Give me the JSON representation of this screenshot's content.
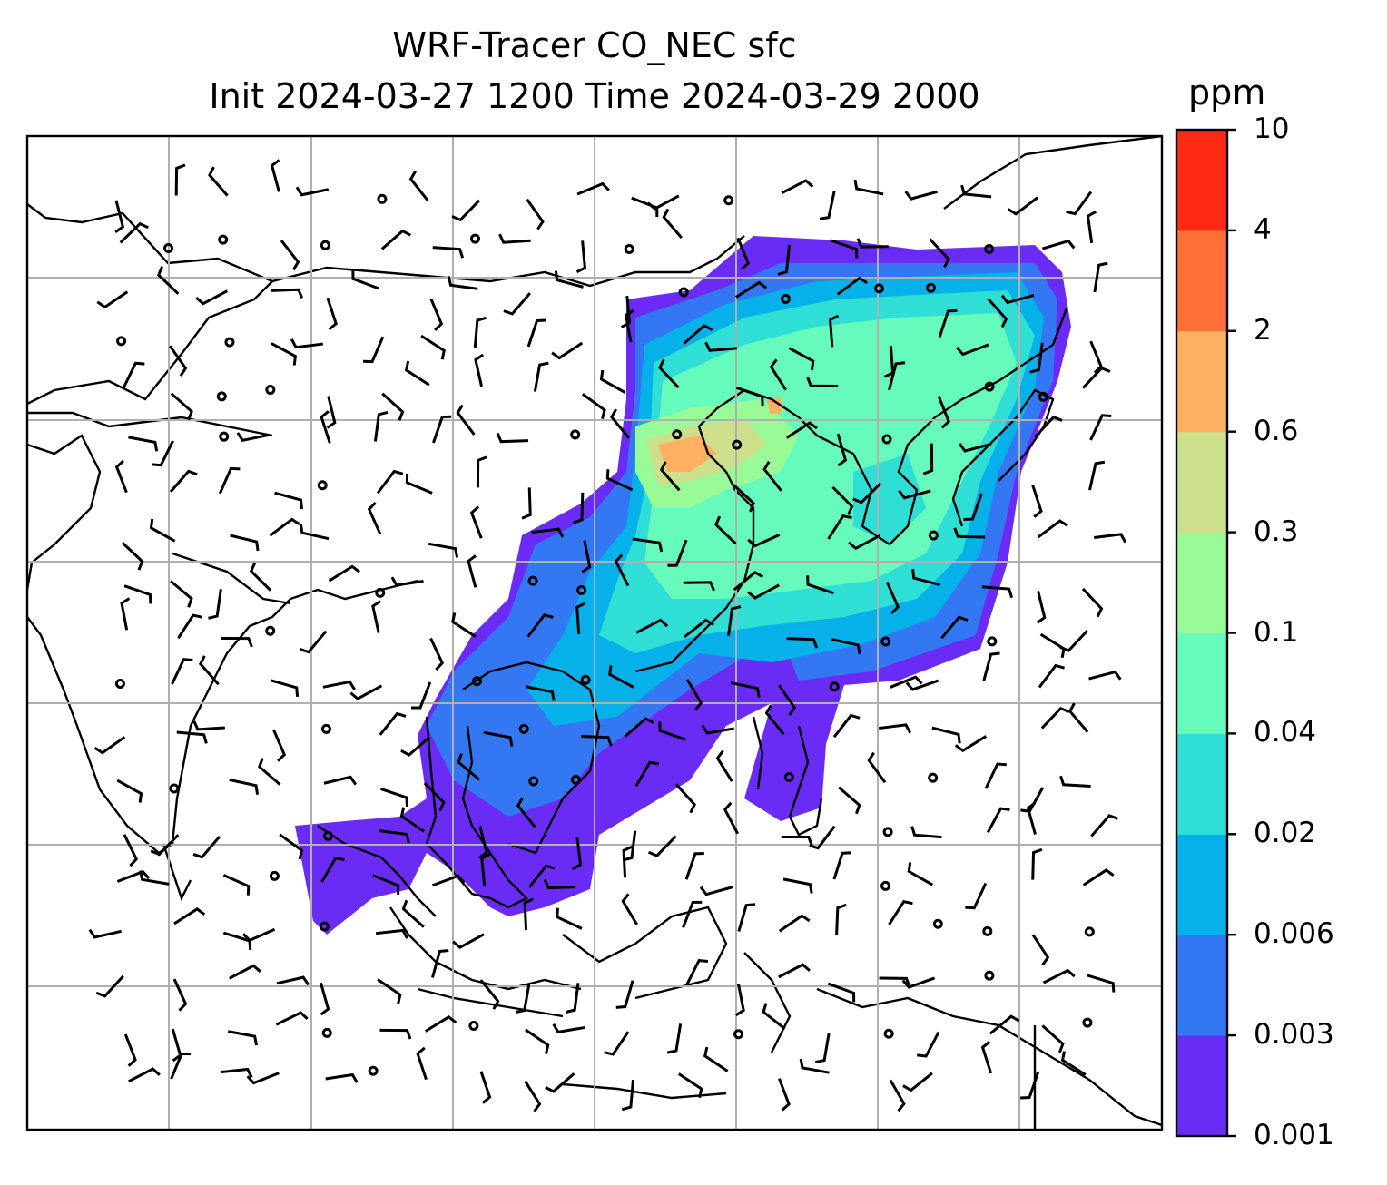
{
  "title_line_1": "WRF-Tracer CO_NEC sfc",
  "title_line_2": "Init 2024-03-27 1200 Time 2024-03-29 2000",
  "colorbar": {
    "unit": "ppm",
    "ticks": [
      "0.001",
      "0.003",
      "0.006",
      "0.02",
      "0.04",
      "0.1",
      "0.3",
      "0.6",
      "2",
      "4",
      "10"
    ],
    "colors": [
      "#6a2cf5",
      "#3377f2",
      "#06b0e8",
      "#2fdfd6",
      "#66fbbd",
      "#98fb98",
      "#cddf8a",
      "#ffb060",
      "#ff7038",
      "#ff2a14"
    ]
  },
  "map": {
    "field": "CO_NEC surface concentration",
    "overlay": "wind barbs",
    "background": "#ffffff",
    "gridline_color": "#b0b0b0"
  }
}
